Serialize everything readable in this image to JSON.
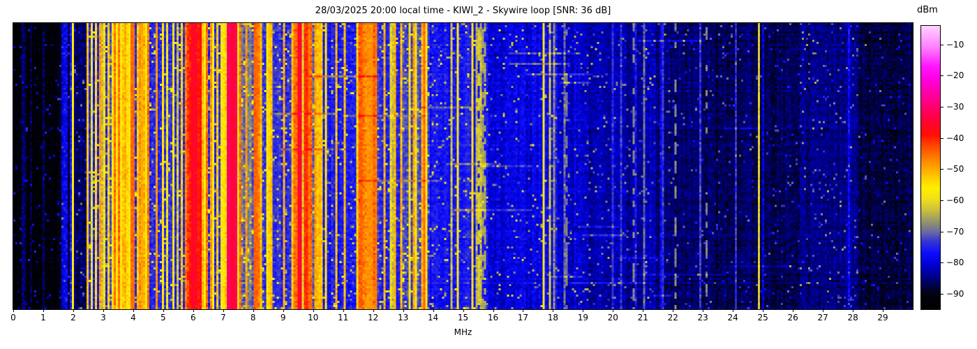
{
  "title": "28/03/2025 20:00 local time - KIWI_2 - Skywire loop [SNR: 36 dB]",
  "chart_data": {
    "type": "heatmap",
    "subtype": "hf-radio-waterfall-spectrogram",
    "title": "28/03/2025 20:00 local time - KIWI_2 - Skywire loop [SNR: 36 dB]",
    "station": "KIWI_2",
    "antenna": "Skywire loop",
    "snr_db": 36,
    "datetime_local": "28/03/2025 20:00",
    "xlabel": "MHz",
    "x_range": [
      0,
      30
    ],
    "x_ticks": [
      0,
      1,
      2,
      3,
      4,
      5,
      6,
      7,
      8,
      9,
      10,
      11,
      12,
      13,
      14,
      15,
      16,
      17,
      18,
      19,
      20,
      21,
      22,
      23,
      24,
      25,
      26,
      27,
      28,
      29
    ],
    "y_axis_has_labels": false,
    "colorbar": {
      "label": "dBm",
      "range": [
        -95,
        -4
      ],
      "tick_values": [
        -10,
        -20,
        -30,
        -40,
        -50,
        -60,
        -70,
        -80,
        -90
      ],
      "tick_labels": [
        "−10",
        "−20",
        "−30",
        "−40",
        "−50",
        "−60",
        "−70",
        "−80",
        "−90"
      ]
    },
    "colormap_stops": [
      [
        -95,
        "#000000"
      ],
      [
        -90,
        "#020212"
      ],
      [
        -86,
        "#00006e"
      ],
      [
        -81,
        "#0000cf"
      ],
      [
        -77,
        "#0d0dff"
      ],
      [
        -73,
        "#3939d0"
      ],
      [
        -70,
        "#6e6e9e"
      ],
      [
        -67,
        "#94946e"
      ],
      [
        -63,
        "#cfc23a"
      ],
      [
        -59,
        "#f5e414"
      ],
      [
        -56,
        "#ffee00"
      ],
      [
        -52,
        "#ffc300"
      ],
      [
        -48,
        "#ff9100"
      ],
      [
        -43,
        "#ff4e00"
      ],
      [
        -39,
        "#ff0f00"
      ],
      [
        -33,
        "#ff0049"
      ],
      [
        -27,
        "#ff0094"
      ],
      [
        -21,
        "#ff00e1"
      ],
      [
        -17,
        "#ff16ff"
      ],
      [
        -11,
        "#ff7dff"
      ],
      [
        -4,
        "#ffd2ff"
      ]
    ],
    "bands": [
      {
        "f": [
          0.0,
          1.55
        ],
        "floor": -93,
        "density": 0.04,
        "carrier": [
          -88,
          -83
        ],
        "speckle": 0.03
      },
      {
        "f": [
          1.55,
          1.97
        ],
        "floor": -88,
        "density": 0.18,
        "carrier": [
          -84,
          -76
        ],
        "speckle": 0.05
      },
      {
        "f": [
          1.97,
          2.45
        ],
        "floor": -86,
        "density": 0.2,
        "carrier": [
          -82,
          -72
        ],
        "speckle": 0.05
      },
      {
        "f": [
          2.45,
          3.15
        ],
        "floor": -75,
        "density": 0.5,
        "carrier": [
          -66,
          -46
        ],
        "speckle": 0.07
      },
      {
        "f": [
          3.15,
          4.55
        ],
        "floor": -73,
        "density": 0.8,
        "carrier": [
          -62,
          -45
        ],
        "speckle": 0.1
      },
      {
        "f": [
          4.55,
          5.75
        ],
        "floor": -75,
        "density": 0.5,
        "carrier": [
          -64,
          -48
        ],
        "speckle": 0.08
      },
      {
        "f": [
          5.75,
          6.3
        ],
        "floor": -66,
        "density": 0.9,
        "carrier": [
          -50,
          -34
        ],
        "speckle": 0.12
      },
      {
        "f": [
          6.3,
          7.1
        ],
        "floor": -74,
        "density": 0.6,
        "carrier": [
          -60,
          -44
        ],
        "speckle": 0.1
      },
      {
        "f": [
          7.1,
          7.5
        ],
        "floor": -62,
        "density": 0.95,
        "carrier": [
          -44,
          -30
        ],
        "speckle": 0.12
      },
      {
        "f": [
          7.5,
          8.3
        ],
        "floor": -70,
        "density": 0.7,
        "carrier": [
          -58,
          -42
        ],
        "speckle": 0.1
      },
      {
        "f": [
          8.3,
          9.35
        ],
        "floor": -74,
        "density": 0.55,
        "carrier": [
          -62,
          -46
        ],
        "speckle": 0.08
      },
      {
        "f": [
          9.35,
          10.0
        ],
        "floor": -62,
        "density": 0.85,
        "carrier": [
          -50,
          -35
        ],
        "speckle": 0.12
      },
      {
        "f": [
          10.0,
          10.35
        ],
        "floor": -70,
        "density": 0.6,
        "carrier": [
          -60,
          -48
        ],
        "speckle": 0.08
      },
      {
        "f": [
          10.35,
          11.45
        ],
        "floor": -76,
        "density": 0.3,
        "carrier": [
          -65,
          -50
        ],
        "speckle": 0.06
      },
      {
        "f": [
          11.45,
          12.15
        ],
        "floor": -71,
        "density": 0.6,
        "carrier": [
          -58,
          -44
        ],
        "speckle": 0.08
      },
      {
        "f": [
          12.15,
          12.95
        ],
        "floor": -75,
        "density": 0.35,
        "carrier": [
          -64,
          -50
        ],
        "speckle": 0.06
      },
      {
        "f": [
          12.95,
          13.85
        ],
        "floor": -72,
        "density": 0.55,
        "carrier": [
          -62,
          -46
        ],
        "speckle": 0.08
      },
      {
        "f": [
          13.85,
          15.05
        ],
        "floor": -77,
        "density": 0.25,
        "carrier": [
          -66,
          -54
        ],
        "speckle": 0.05
      },
      {
        "f": [
          15.05,
          15.85
        ],
        "floor": -76,
        "density": 0.35,
        "carrier": [
          -66,
          -56
        ],
        "speckle": 0.05
      },
      {
        "f": [
          15.85,
          17.6
        ],
        "floor": -80,
        "density": 0.12,
        "carrier": [
          -74,
          -64
        ],
        "speckle": 0.04
      },
      {
        "f": [
          17.6,
          18.15
        ],
        "floor": -78,
        "density": 0.3,
        "carrier": [
          -70,
          -60
        ],
        "speckle": 0.05
      },
      {
        "f": [
          18.15,
          19.2
        ],
        "floor": -81,
        "density": 0.15,
        "carrier": [
          -76,
          -66
        ],
        "speckle": 0.04
      },
      {
        "f": [
          19.2,
          21.4
        ],
        "floor": -83,
        "density": 0.12,
        "carrier": [
          -78,
          -70
        ],
        "speckle": 0.04
      },
      {
        "f": [
          21.4,
          23.4
        ],
        "floor": -86,
        "density": 0.07,
        "carrier": [
          -80,
          -72
        ],
        "speckle": 0.03
      },
      {
        "f": [
          23.4,
          26.2
        ],
        "floor": -87,
        "density": 0.05,
        "carrier": [
          -81,
          -74
        ],
        "speckle": 0.03
      },
      {
        "f": [
          26.2,
          28.2
        ],
        "floor": -85,
        "density": 0.1,
        "carrier": [
          -79,
          -71
        ],
        "speckle": 0.04
      },
      {
        "f": [
          28.2,
          30.0
        ],
        "floor": -88,
        "density": 0.04,
        "carrier": [
          -82,
          -76
        ],
        "speckle": 0.02
      }
    ],
    "notable_carriers": [
      {
        "f": 2.0,
        "level": -57,
        "w": 1,
        "duty": 1.0
      },
      {
        "f": 2.5,
        "level": -52,
        "w": 1,
        "duty": 1.0
      },
      {
        "f": 3.95,
        "level": -45,
        "w": 2,
        "duty": 1.0
      },
      {
        "f": 4.26,
        "level": -50,
        "w": 1,
        "duty": 1.0
      },
      {
        "f": 4.79,
        "level": -48,
        "w": 1,
        "duty": 1.0
      },
      {
        "f": 5.35,
        "level": -55,
        "w": 1,
        "duty": 1.0
      },
      {
        "f": 5.98,
        "level": -36,
        "w": 2,
        "duty": 1.0
      },
      {
        "f": 6.16,
        "level": -40,
        "w": 2,
        "duty": 1.0
      },
      {
        "f": 7.2,
        "level": -31,
        "w": 3,
        "duty": 1.0
      },
      {
        "f": 7.35,
        "level": -35,
        "w": 2,
        "duty": 1.0
      },
      {
        "f": 8.12,
        "level": -45,
        "w": 2,
        "duty": 1.0
      },
      {
        "f": 9.55,
        "level": -35,
        "w": 2,
        "duty": 1.0
      },
      {
        "f": 9.76,
        "level": -41,
        "w": 2,
        "duty": 1.0
      },
      {
        "f": 10.05,
        "level": -52,
        "w": 1,
        "duty": 1.0
      },
      {
        "f": 11.63,
        "level": -44,
        "w": 1,
        "duty": 1.0
      },
      {
        "f": 11.9,
        "level": -48,
        "w": 3,
        "duty": 1.0
      },
      {
        "f": 12.07,
        "level": -46,
        "w": 1,
        "duty": 1.0
      },
      {
        "f": 13.7,
        "level": -45,
        "w": 1,
        "duty": 1.0
      },
      {
        "f": 15.3,
        "level": -55,
        "w": 1,
        "duty": 1.0
      },
      {
        "f": 15.55,
        "level": -62,
        "w": 1,
        "duty": 0.7
      },
      {
        "f": 15.7,
        "level": -66,
        "w": 2,
        "duty": 0.6
      },
      {
        "f": 17.7,
        "level": -58,
        "w": 1,
        "duty": 1.0
      },
      {
        "f": 17.9,
        "level": -62,
        "w": 1,
        "duty": 0.8
      },
      {
        "f": 18.45,
        "level": -69,
        "w": 1,
        "duty": 0.5
      },
      {
        "f": 20.7,
        "level": -68,
        "w": 1,
        "duty": 0.5
      },
      {
        "f": 22.05,
        "level": -68,
        "w": 1,
        "duty": 0.5
      },
      {
        "f": 23.1,
        "level": -69,
        "w": 1,
        "duty": 0.4
      },
      {
        "f": 24.9,
        "level": -62,
        "w": 1,
        "duty": 1.0
      }
    ]
  }
}
